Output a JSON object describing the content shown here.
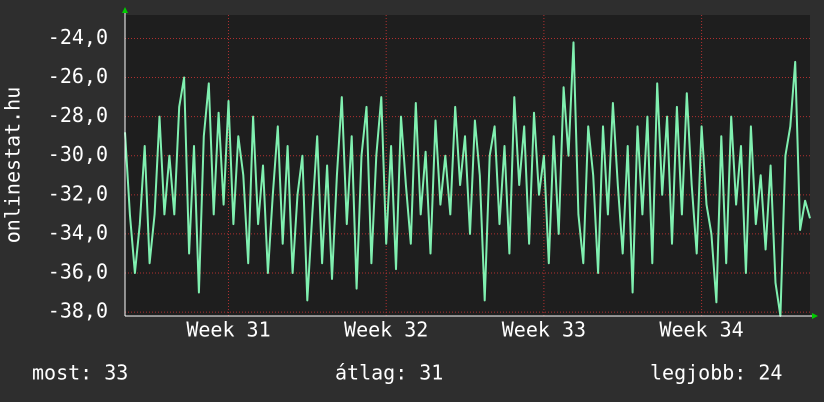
{
  "chart_data": {
    "type": "line",
    "y_label": "onlinestat.hu",
    "series": [
      {
        "name": "onlinestat.hu",
        "color": "#80f0b0",
        "values": [
          -28.8,
          -33,
          -36,
          -33.5,
          -29.5,
          -35.5,
          -33,
          -28,
          -33,
          -30,
          -33,
          -27.5,
          -26,
          -35,
          -29.5,
          -37,
          -29,
          -26.3,
          -33,
          -27.8,
          -32.5,
          -27.2,
          -33.5,
          -29,
          -31,
          -35.5,
          -28,
          -33.5,
          -30.5,
          -36,
          -32,
          -28.5,
          -34.5,
          -29.5,
          -36,
          -32,
          -30,
          -37.4,
          -33,
          -29,
          -35.5,
          -30.5,
          -36.3,
          -31,
          -27,
          -33.5,
          -29,
          -36.8,
          -30,
          -27.5,
          -35.5,
          -30,
          -27,
          -34.5,
          -29.5,
          -35.8,
          -28,
          -31.5,
          -34.5,
          -27.3,
          -33,
          -29.8,
          -35,
          -28.2,
          -32.5,
          -30,
          -33,
          -27.5,
          -31.5,
          -29,
          -34,
          -28.2,
          -31,
          -37.4,
          -30,
          -28.5,
          -33.5,
          -29.5,
          -35,
          -27,
          -31.5,
          -28.5,
          -34.5,
          -27.8,
          -32,
          -30,
          -35.5,
          -29,
          -34,
          -26.5,
          -30,
          -24.2,
          -33,
          -35.5,
          -28.5,
          -31,
          -36,
          -28.5,
          -33,
          -27.3,
          -31.5,
          -35,
          -29.5,
          -37,
          -28.5,
          -33,
          -28,
          -35.5,
          -26.3,
          -32,
          -28,
          -34.5,
          -27.5,
          -33,
          -26.8,
          -31.5,
          -35,
          -28.5,
          -32.5,
          -34,
          -37.5,
          -29,
          -35.5,
          -28,
          -32.5,
          -29.5,
          -36,
          -28.5,
          -33.5,
          -31,
          -34.8,
          -30.5,
          -36.5,
          -38.2,
          -30,
          -28.5,
          -25.2,
          -33.8,
          -32.3,
          -33.2
        ]
      }
    ],
    "xlim": [
      0,
      139
    ],
    "xticks": [
      {
        "value": 21,
        "label": "Week 31"
      },
      {
        "value": 53,
        "label": "Week 32"
      },
      {
        "value": 85,
        "label": "Week 33"
      },
      {
        "value": 117,
        "label": "Week 34"
      }
    ],
    "ylim": [
      -38.2,
      -22.8
    ],
    "yticks": [
      {
        "value": -38,
        "label": "-38,0"
      },
      {
        "value": -36,
        "label": "-36,0"
      },
      {
        "value": -34,
        "label": "-34,0"
      },
      {
        "value": -32,
        "label": "-32,0"
      },
      {
        "value": -30,
        "label": "-30,0"
      },
      {
        "value": -28,
        "label": "-28,0"
      },
      {
        "value": -26,
        "label": "-26,0"
      },
      {
        "value": -24,
        "label": "-24,0"
      }
    ],
    "grid": true,
    "stats": [
      {
        "label": "most:",
        "value": "33"
      },
      {
        "label": "átlag:",
        "value": "31"
      },
      {
        "label": "legjobb:",
        "value": "24"
      }
    ]
  }
}
